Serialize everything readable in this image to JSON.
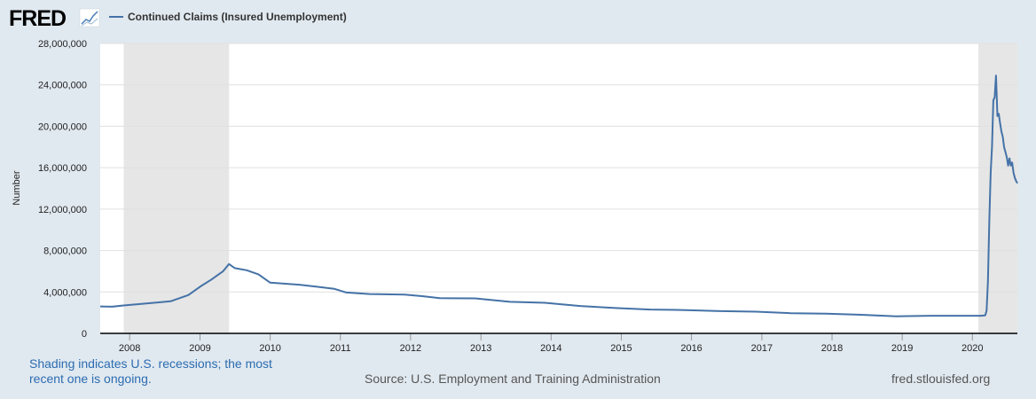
{
  "header": {
    "logo_text": "FRED",
    "logo_icon": "line-chart-icon",
    "legend_label": "Continued Claims (Insured Unemployment)"
  },
  "footer": {
    "note": "Shading indicates U.S. recessions; the most recent one is ongoing.",
    "source": "Source: U.S. Employment and Training Administration",
    "site": "fred.stlouisfed.org"
  },
  "chart_data": {
    "type": "line",
    "title": "",
    "xlabel": "",
    "ylabel": "Number",
    "ylim": [
      0,
      28000000
    ],
    "xlim": [
      "2007-08-01",
      "2020-08-22"
    ],
    "yticks": [
      0,
      4000000,
      8000000,
      12000000,
      16000000,
      20000000,
      24000000,
      28000000
    ],
    "ytick_labels": [
      "0",
      "4,000,000",
      "8,000,000",
      "12,000,000",
      "16,000,000",
      "20,000,000",
      "24,000,000",
      "28,000,000"
    ],
    "xtick_labels": [
      "2008",
      "2009",
      "2010",
      "2011",
      "2012",
      "2013",
      "2014",
      "2015",
      "2016",
      "2017",
      "2018",
      "2019",
      "2020"
    ],
    "grid": "horizontal",
    "legend_position": "top-left",
    "series": [
      {
        "name": "Continued Claims (Insured Unemployment)",
        "color": "#4572a7",
        "x": [
          "2007-08-01",
          "2007-10-01",
          "2007-12-01",
          "2008-03-01",
          "2008-06-01",
          "2008-08-01",
          "2008-11-01",
          "2009-01-01",
          "2009-03-01",
          "2009-05-01",
          "2009-06-01",
          "2009-07-01",
          "2009-09-01",
          "2009-11-01",
          "2010-01-01",
          "2010-06-01",
          "2010-09-01",
          "2010-12-01",
          "2011-02-01",
          "2011-06-01",
          "2011-12-01",
          "2012-03-01",
          "2012-06-01",
          "2012-12-01",
          "2013-06-01",
          "2013-12-01",
          "2014-06-01",
          "2014-12-01",
          "2015-06-01",
          "2015-12-01",
          "2016-06-01",
          "2016-12-01",
          "2017-06-01",
          "2017-12-01",
          "2018-06-01",
          "2018-12-01",
          "2019-06-01",
          "2019-12-01",
          "2020-02-15",
          "2020-03-08",
          "2020-03-15",
          "2020-03-22",
          "2020-03-29",
          "2020-04-05",
          "2020-04-12",
          "2020-04-19",
          "2020-04-26",
          "2020-05-03",
          "2020-05-10",
          "2020-05-17",
          "2020-05-24",
          "2020-05-31",
          "2020-06-07",
          "2020-06-14",
          "2020-06-21",
          "2020-06-28",
          "2020-07-05",
          "2020-07-12",
          "2020-07-19",
          "2020-07-26",
          "2020-08-02",
          "2020-08-09",
          "2020-08-16",
          "2020-08-22"
        ],
        "values": [
          2600000,
          2580000,
          2700000,
          2850000,
          3000000,
          3100000,
          3700000,
          4500000,
          5200000,
          6000000,
          6700000,
          6300000,
          6100000,
          5700000,
          4900000,
          4700000,
          4500000,
          4300000,
          3950000,
          3800000,
          3750000,
          3600000,
          3400000,
          3380000,
          3050000,
          2950000,
          2650000,
          2450000,
          2300000,
          2250000,
          2150000,
          2100000,
          1950000,
          1900000,
          1800000,
          1650000,
          1700000,
          1700000,
          1700000,
          1750000,
          2200000,
          5000000,
          11000000,
          15500000,
          18000000,
          22500000,
          22800000,
          24900000,
          21000000,
          21200000,
          20300000,
          19500000,
          19000000,
          18000000,
          17500000,
          17000000,
          16200000,
          16900000,
          16200000,
          16500000,
          15500000,
          15000000,
          14700000,
          14500000
        ]
      }
    ],
    "recessions": [
      {
        "start": "2007-12-01",
        "end": "2009-06-01"
      },
      {
        "start": "2020-02-01",
        "end": "2020-08-22"
      }
    ]
  }
}
